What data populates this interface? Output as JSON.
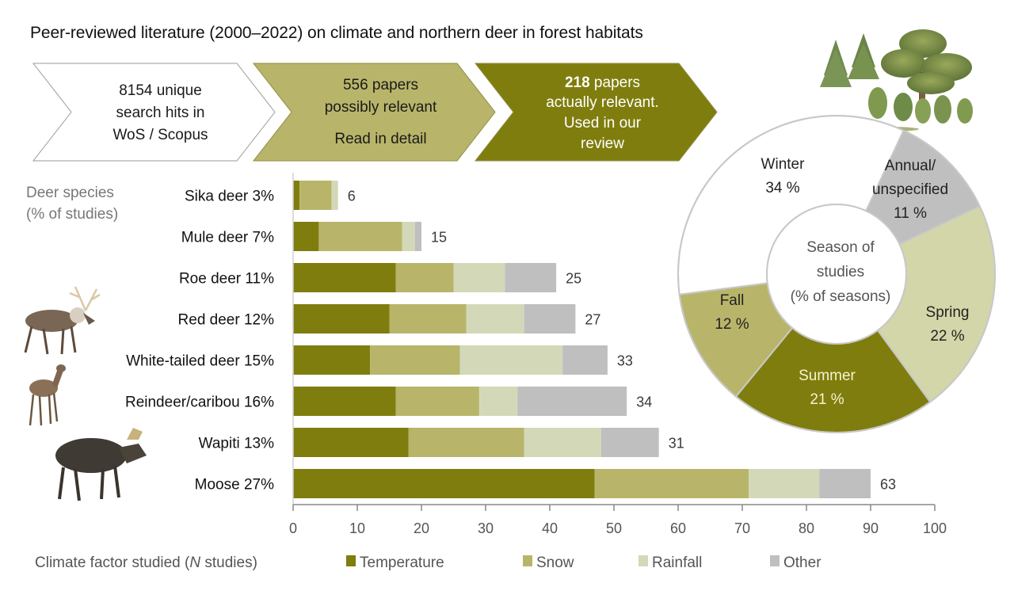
{
  "title": "Peer-reviewed literature (2000–2022) on climate and northern deer in forest habitats",
  "flow": [
    {
      "lines": [
        "8154 unique",
        "search hits in",
        "WoS / Scopus"
      ],
      "fill": "#ffffff",
      "text_color": "#1a1a1a"
    },
    {
      "lines": [
        "556 papers",
        "possibly relevant",
        "Read in detail"
      ],
      "fill": "#b8b56a",
      "text_color": "#1a1a1a"
    },
    {
      "bold_prefix": "218",
      "lines": [
        " papers",
        "actually relevant.",
        "Used in our",
        "review"
      ],
      "fill": "#7f7d0e",
      "text_color": "#ffffff"
    }
  ],
  "illustrations": {
    "trees": "forest-trees-illustration",
    "animals": [
      "reindeer-illustration",
      "roe-deer-illustration",
      "moose-illustration"
    ]
  },
  "chart_data": [
    {
      "type": "bar",
      "orientation": "horizontal",
      "stacked": true,
      "title": "",
      "ylabel": "Deer species\n(% of studies)",
      "xlabel": "Climate factor studied (N studies)",
      "xlim": [
        0,
        100
      ],
      "xticks": [
        0,
        10,
        20,
        30,
        40,
        50,
        60,
        70,
        80,
        90,
        100
      ],
      "grid": false,
      "legend_position": "bottom",
      "categories": [
        "Sika deer 3%",
        "Mule deer 7%",
        "Roe deer 11%",
        "Red deer 12%",
        "White-tailed deer 15%",
        "Reindeer/caribou 16%",
        "Wapiti 13%",
        "Moose 27%"
      ],
      "totals": [
        6,
        15,
        25,
        27,
        33,
        34,
        31,
        63
      ],
      "series": [
        {
          "name": "Temperature",
          "color": "#7f7d0e",
          "values": [
            1,
            4,
            16,
            15,
            12,
            16,
            18,
            47
          ]
        },
        {
          "name": "Snow",
          "color": "#b8b56a",
          "values": [
            5,
            13,
            9,
            12,
            14,
            13,
            18,
            24
          ]
        },
        {
          "name": "Rainfall",
          "color": "#d3d9b8",
          "values": [
            1,
            2,
            8,
            9,
            16,
            6,
            12,
            11
          ]
        },
        {
          "name": "Other",
          "color": "#bfbfbf",
          "values": [
            0,
            1,
            8,
            8,
            7,
            17,
            9,
            8
          ]
        }
      ]
    },
    {
      "type": "pie",
      "donut": true,
      "title": "Season of studies (% of seasons)",
      "center_lines": [
        "Season of",
        "studies",
        "(% of seasons)"
      ],
      "slices": [
        {
          "label": "Annual/ unspecified",
          "lines": [
            "Annual/",
            "unspecified",
            "11 %"
          ],
          "value": 11,
          "color": "#bfbfbf",
          "text_color": "#222222"
        },
        {
          "label": "Spring",
          "lines": [
            "Spring",
            "22 %"
          ],
          "value": 22,
          "color": "#d3d6a8",
          "text_color": "#222222"
        },
        {
          "label": "Summer",
          "lines": [
            "Summer",
            "21 %"
          ],
          "value": 21,
          "color": "#7f7d0e",
          "text_color": "#f5f3d0"
        },
        {
          "label": "Fall",
          "lines": [
            "Fall",
            "12 %"
          ],
          "value": 12,
          "color": "#b8b56a",
          "text_color": "#222222"
        },
        {
          "label": "Winter",
          "lines": [
            "Winter",
            "34 %"
          ],
          "value": 34,
          "color": "#ffffff",
          "text_color": "#222222"
        }
      ]
    }
  ]
}
